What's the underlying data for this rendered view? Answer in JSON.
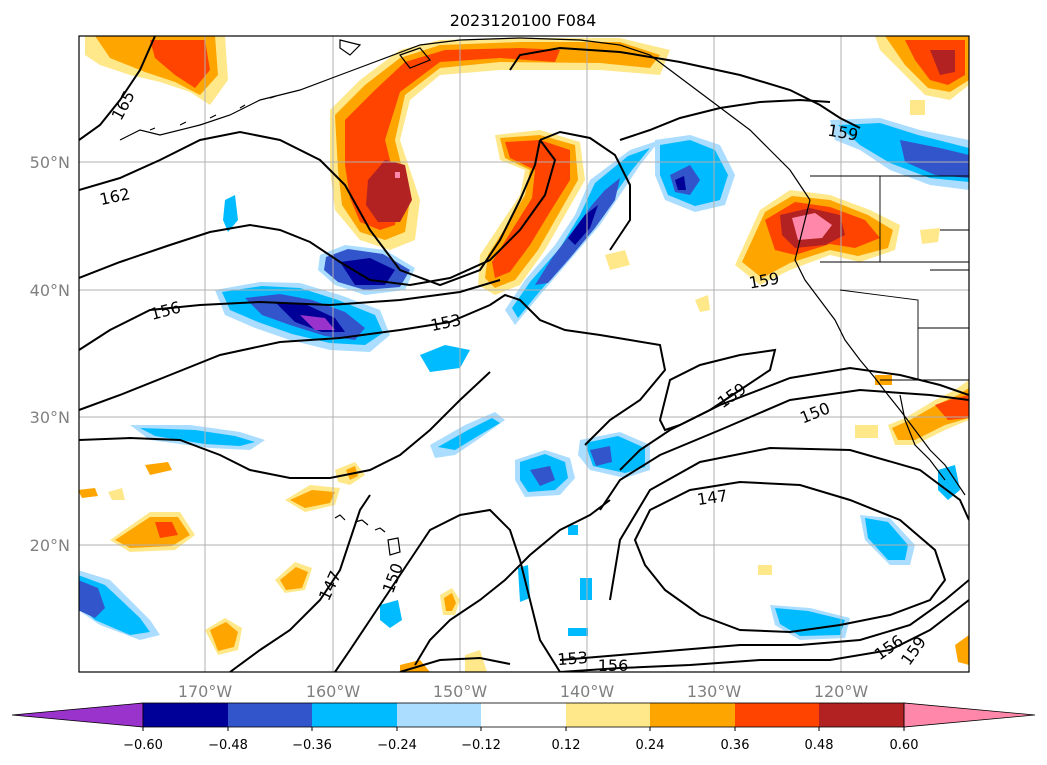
{
  "title": "2023120100 F084",
  "lat_labels": [
    "50°N",
    "40°N",
    "30°N",
    "20°N"
  ],
  "lon_labels": [
    "170°W",
    "160°W",
    "150°W",
    "140°W",
    "130°W",
    "120°W"
  ],
  "contour_labels": [
    "165",
    "162",
    "156",
    "153",
    "159",
    "159",
    "159",
    "150",
    "147",
    "147",
    "150",
    "153",
    "156",
    "156",
    "159"
  ],
  "colorbar": {
    "tick_labels": [
      "−0.60",
      "−0.48",
      "−0.36",
      "−0.24",
      "−0.12",
      "0.12",
      "0.24",
      "0.36",
      "0.48",
      "0.60"
    ],
    "colors": [
      "#9933cc",
      "#000099",
      "#3355cc",
      "#00bbff",
      "#aaddff",
      "#ffffff",
      "#ffe88a",
      "#ffa500",
      "#ff4400",
      "#b22222",
      "#ff88aa"
    ]
  },
  "colors": {
    "purple": "#9933cc",
    "navy": "#000099",
    "blue": "#3355cc",
    "cyan": "#00bbff",
    "light_blue": "#aaddff",
    "pale_yellow": "#ffe88a",
    "orange": "#ffa500",
    "red_orange": "#ff4400",
    "dark_red": "#b22222",
    "pink": "#ff88aa"
  }
}
